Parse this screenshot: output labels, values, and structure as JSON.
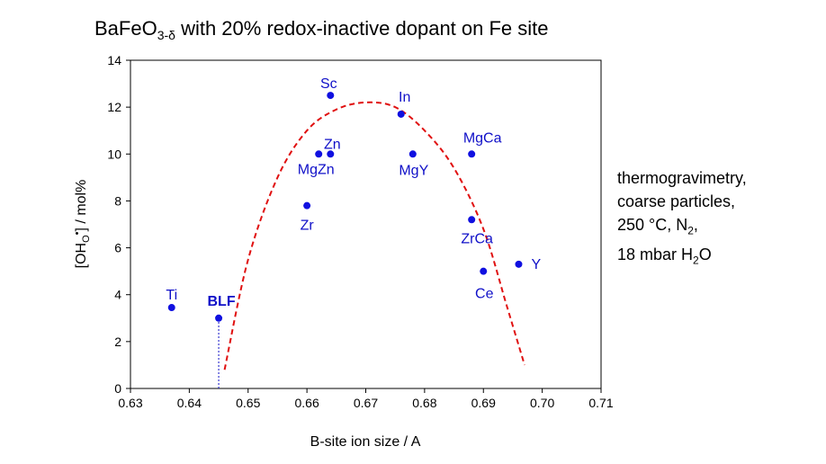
{
  "chart_data": {
    "type": "scatter",
    "title": {
      "base": "BaFeO",
      "sub": "3-δ",
      "rest": " with 20% redox-inactive dopant on Fe site"
    },
    "xlabel": "B-site ion size / A",
    "ylabel": {
      "pre": "[OH",
      "sub": "O",
      "sup": "•",
      "post": "] / mol%"
    },
    "xlim": [
      0.63,
      0.71
    ],
    "ylim": [
      0,
      14
    ],
    "xticks": [
      "0.63",
      "0.64",
      "0.65",
      "0.66",
      "0.67",
      "0.68",
      "0.69",
      "0.70",
      "0.71"
    ],
    "yticks": [
      "0",
      "2",
      "4",
      "6",
      "8",
      "10",
      "12",
      "14"
    ],
    "grid": false,
    "point_color": "#1010e0",
    "label_color": "#1010c8",
    "points": [
      {
        "label": "Ti",
        "x": 0.637,
        "y": 3.45
      },
      {
        "label": "BLF",
        "x": 0.645,
        "y": 3.0,
        "bold": true
      },
      {
        "label": "Zr",
        "x": 0.66,
        "y": 7.8
      },
      {
        "label": "Zn",
        "x": 0.664,
        "y": 10.0
      },
      {
        "label": "MgZn",
        "x": 0.662,
        "y": 10.0
      },
      {
        "label": "Sc",
        "x": 0.664,
        "y": 12.5
      },
      {
        "label": "In",
        "x": 0.676,
        "y": 11.7
      },
      {
        "label": "MgY",
        "x": 0.678,
        "y": 10.0
      },
      {
        "label": "MgCa",
        "x": 0.688,
        "y": 10.0
      },
      {
        "label": "ZrCa",
        "x": 0.688,
        "y": 7.2
      },
      {
        "label": "Ce",
        "x": 0.69,
        "y": 5.0
      },
      {
        "label": "Y",
        "x": 0.696,
        "y": 5.3
      }
    ],
    "fit_curve": {
      "style": "dashed",
      "color": "#e01010",
      "x": [
        0.646,
        0.65,
        0.655,
        0.66,
        0.665,
        0.67,
        0.675,
        0.68,
        0.685,
        0.69,
        0.694,
        0.697
      ],
      "y": [
        0.8,
        5.5,
        9.0,
        11.0,
        11.9,
        12.2,
        12.0,
        11.0,
        9.4,
        6.8,
        3.5,
        1.0
      ]
    },
    "reference_line": {
      "x": 0.645,
      "y_from": 0,
      "y_to": 3.0,
      "style": "dotted",
      "color": "#1010c8"
    }
  },
  "annotation": {
    "lines": [
      {
        "text": "thermogravimetry,"
      },
      {
        "text": "coarse particles,"
      },
      {
        "pre": "250 °C, N",
        "sub": "2",
        "post": ","
      },
      {
        "pre": "18 mbar H",
        "sub": "2",
        "post": "O"
      }
    ]
  }
}
